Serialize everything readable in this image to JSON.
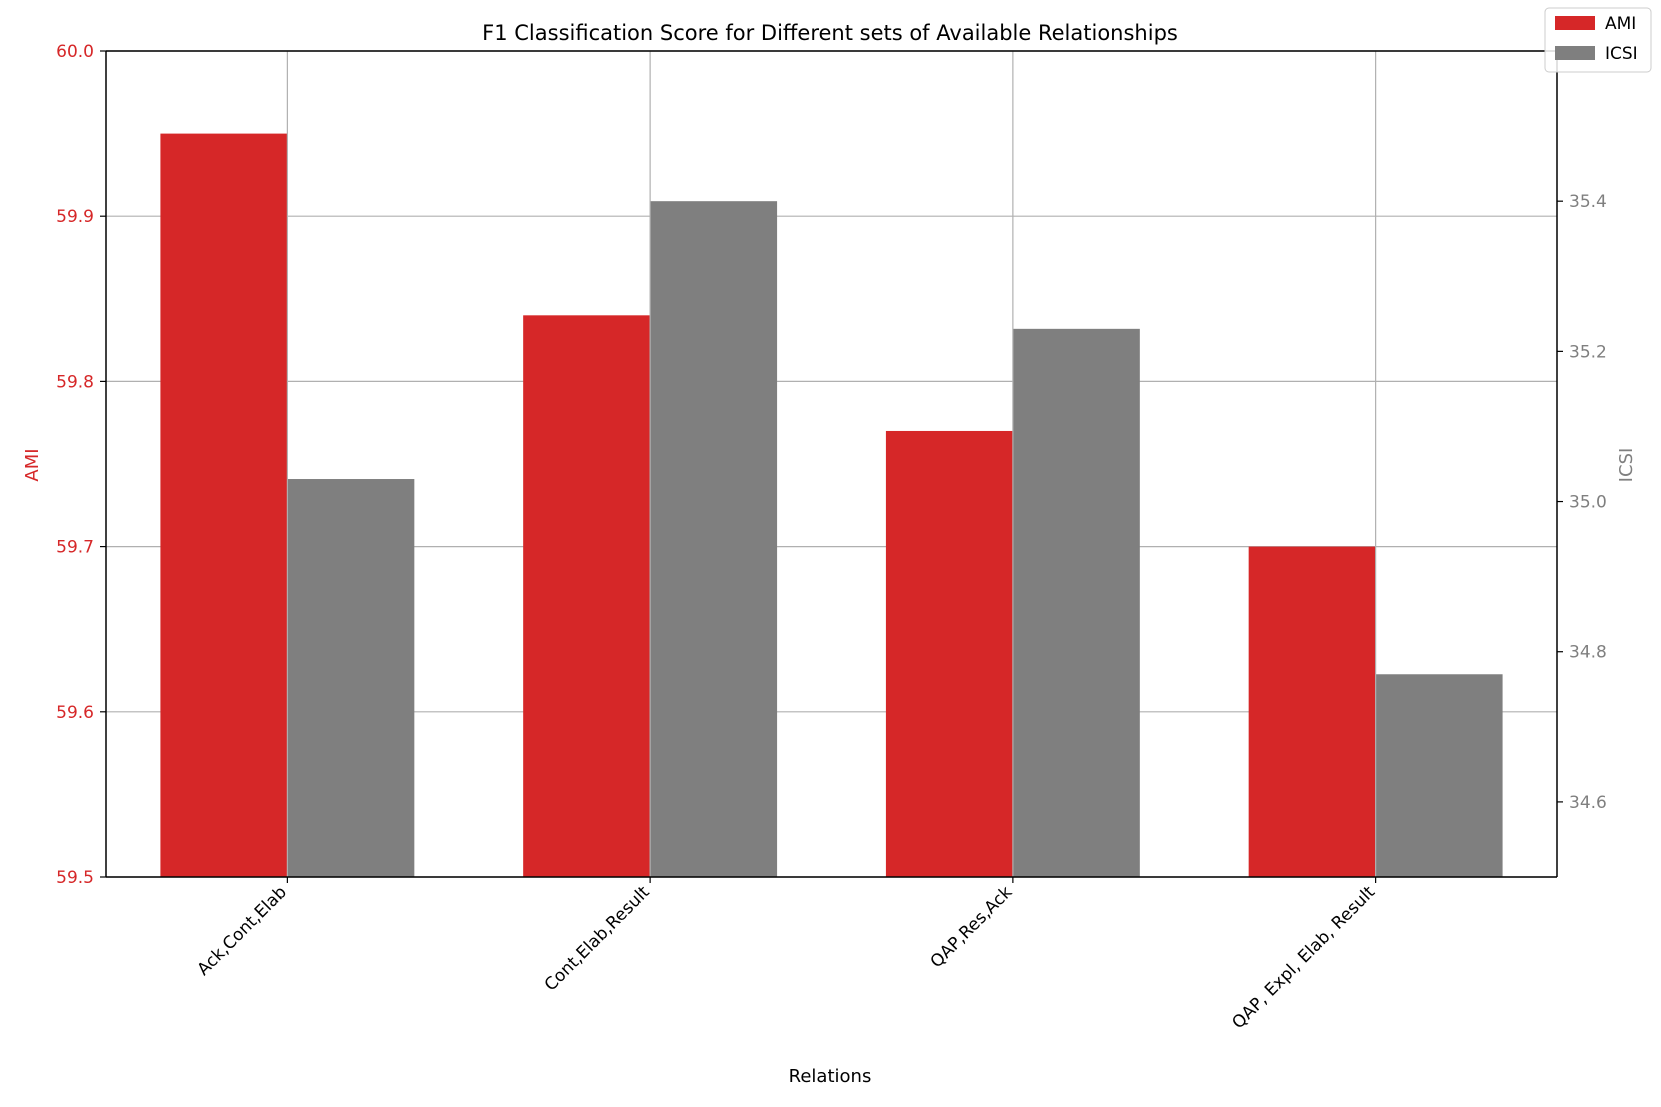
{
  "chart_data": {
    "type": "bar",
    "title": "F1 Classification Score for Different sets of Available Relationships",
    "xlabel": "Relations",
    "categories": [
      "Ack,Cont,Elab",
      "Cont,Elab,Result",
      "QAP,Res,Ack",
      "QAP, Expl, Elab, Result"
    ],
    "series": [
      {
        "name": "AMI",
        "axis": "left",
        "color": "#d62728",
        "values": [
          59.95,
          59.84,
          59.77,
          59.7
        ]
      },
      {
        "name": "ICSI",
        "axis": "right",
        "color": "#7f7f7f",
        "values": [
          35.03,
          35.4,
          35.23,
          34.77
        ]
      }
    ],
    "y_left": {
      "label": "AMI",
      "color": "#d62728",
      "ylim": [
        59.5,
        60.0
      ],
      "ticks": [
        59.5,
        59.6,
        59.7,
        59.8,
        59.9,
        60.0
      ],
      "tick_labels": [
        "59.5",
        "59.6",
        "59.7",
        "59.8",
        "59.9",
        "60.0"
      ]
    },
    "y_right": {
      "label": "ICSI",
      "color": "#7f7f7f",
      "ylim": [
        34.5,
        35.6
      ],
      "ticks": [
        34.6,
        34.8,
        35.0,
        35.2,
        35.4
      ],
      "tick_labels": [
        "34.6",
        "34.8",
        "35.0",
        "35.2",
        "35.4"
      ]
    },
    "grid": true,
    "legend_position": "top-right",
    "legend": [
      "AMI",
      "ICSI"
    ]
  }
}
